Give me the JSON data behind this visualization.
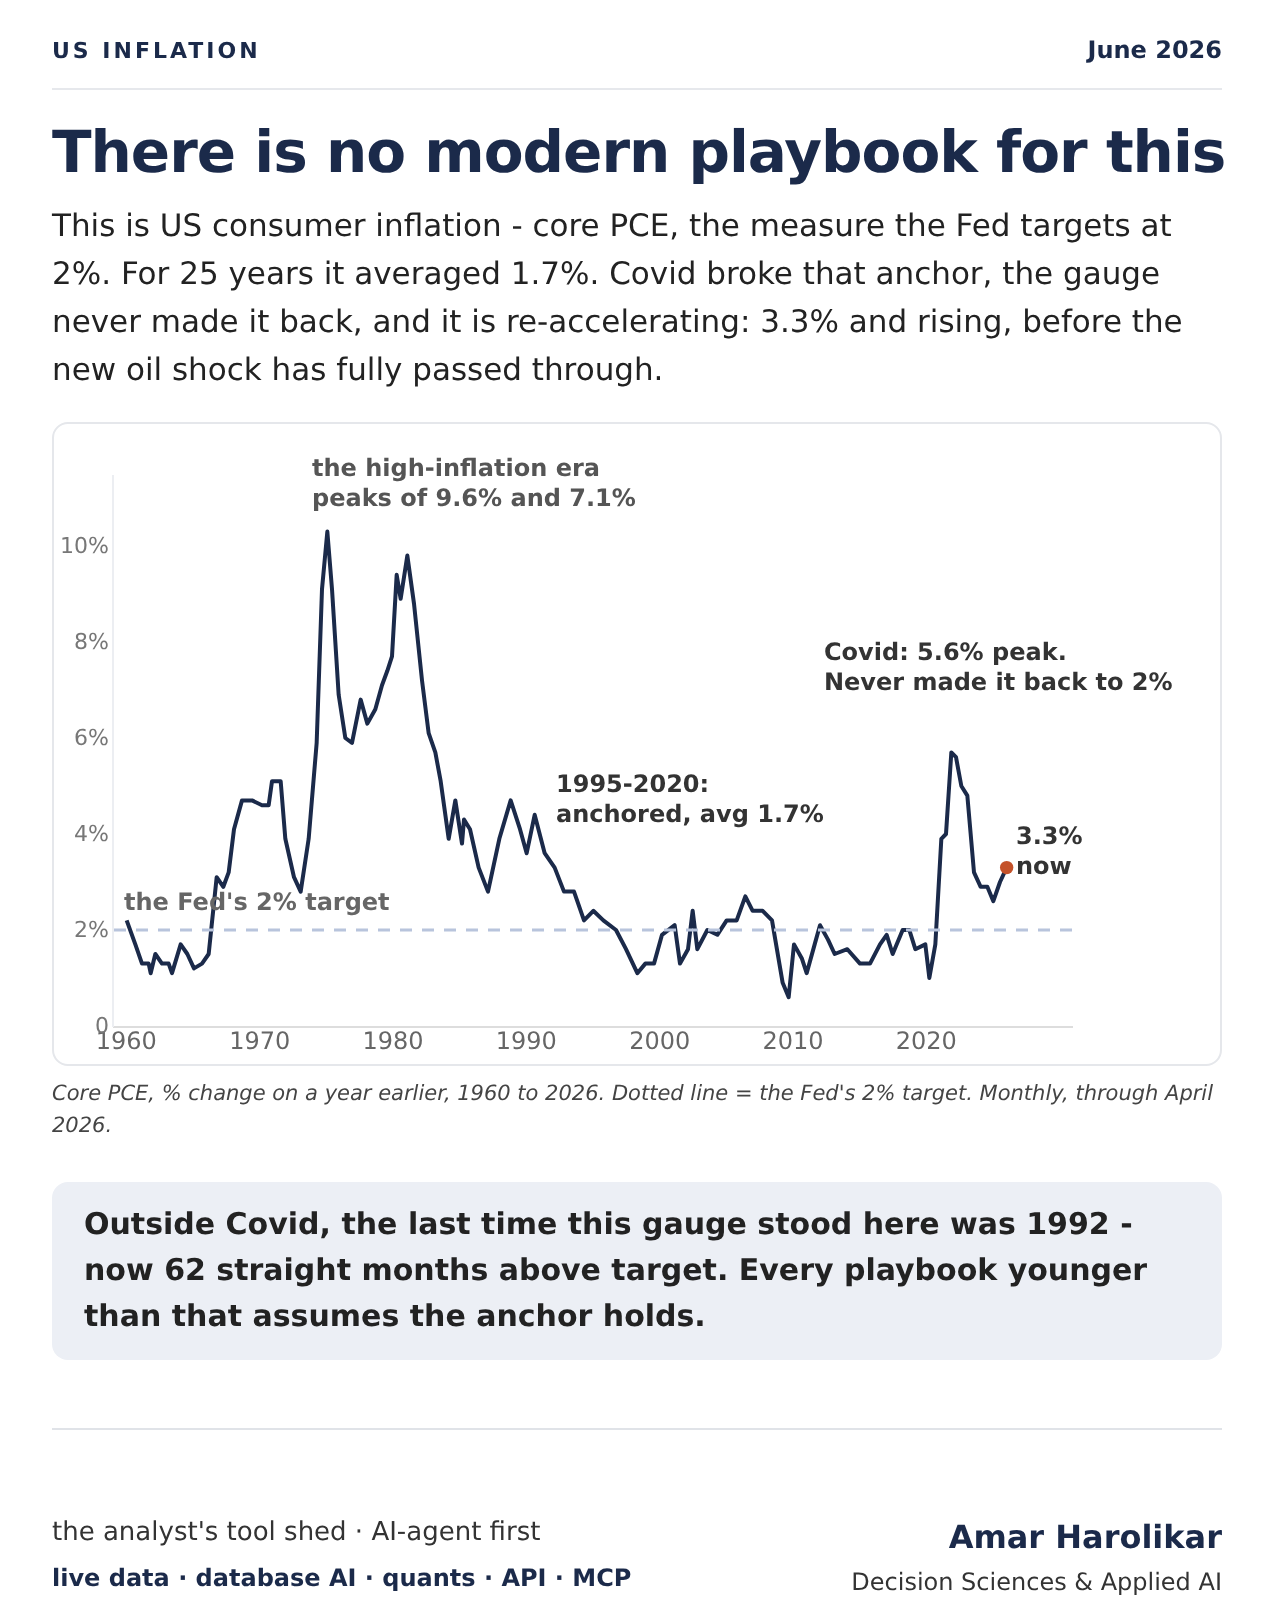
{
  "chart_data": {
    "type": "line",
    "title": "There is no modern playbook for this",
    "subtitle": "This is US consumer inflation - core PCE, the measure the Fed targets at 2%. For 25 years it averaged 1.7%. Covid broke that anchor, the gauge never made it back, and it is re-accelerating: 3.3% and rising, before the new oil shock has fully passed through.",
    "xlim": [
      1959,
      2031
    ],
    "xticks": [
      1960,
      1970,
      1980,
      1990,
      2000,
      2010,
      2020
    ],
    "ylim": [
      0,
      11.5
    ],
    "yticks": [
      0,
      {
        "value": 2,
        "label": "2%"
      },
      {
        "value": 4,
        "label": "4%"
      },
      {
        "value": 6,
        "label": "6%"
      },
      {
        "value": 8,
        "label": "8%"
      },
      {
        "value": 10,
        "label": "10%"
      }
    ],
    "series": [
      {
        "color": "#1b2a4a",
        "x": [
          1960.1,
          1960.75,
          1961.25,
          1961.75,
          1961.9,
          1962.25,
          1962.75,
          1963.25,
          1963.5,
          1964.15,
          1964.65,
          1965.15,
          1965.75,
          1966.25,
          1966.85,
          1967.35,
          1967.75,
          1968.15,
          1968.75,
          1969.5,
          1970.25,
          1970.75,
          1971,
          1971.65,
          1972,
          1972.65,
          1973.15,
          1973.75,
          1974.35,
          1974.75,
          1975.15,
          1975.5,
          1976,
          1976.5,
          1977,
          1977.65,
          1978.15,
          1978.75,
          1979.25,
          1979.65,
          1980,
          1980.35,
          1980.65,
          1981.15,
          1981.65,
          1982.25,
          1982.75,
          1983.25,
          1983.65,
          1984.25,
          1984.75,
          1985.25,
          1985.4,
          1985.85,
          1986.5,
          1987.2,
          1988.05,
          1988.9,
          1989.6,
          1990.1,
          1990.7,
          1991.45,
          1992.2,
          1992.9,
          1993.65,
          1994.4,
          1995.1,
          1995.85,
          1996.8,
          1997.55,
          1998.4,
          1999,
          1999.65,
          2000.25,
          2001.2,
          2001.6,
          2002.2,
          2002.55,
          2002.9,
          2003.65,
          2004.4,
          2005.1,
          2005.85,
          2006.5,
          2007.05,
          2007.8,
          2008.5,
          2009.3,
          2009.75,
          2010.15,
          2010.75,
          2011.1,
          2011.7,
          2012.1,
          2012.7,
          2013.2,
          2014.15,
          2015.1,
          2015.85,
          2016.6,
          2017.1,
          2017.55,
          2018.3,
          2018.8,
          2019.25,
          2020,
          2020.3,
          2020.75,
          2021.2,
          2021.55,
          2021.95,
          2022.3,
          2022.7,
          2023.15,
          2023.65,
          2024.15,
          2024.65,
          2025.1,
          2025.6,
          2026.1
        ],
        "values": [
          2.2,
          1.7,
          1.3,
          1.3,
          1.1,
          1.5,
          1.3,
          1.3,
          1.1,
          1.7,
          1.5,
          1.2,
          1.3,
          1.5,
          3.1,
          2.9,
          3.2,
          4.1,
          4.7,
          4.7,
          4.6,
          4.6,
          5.1,
          5.1,
          3.9,
          3.1,
          2.8,
          3.9,
          5.9,
          9.1,
          10.3,
          9.1,
          6.9,
          6.0,
          5.9,
          6.8,
          6.3,
          6.6,
          7.1,
          7.4,
          7.7,
          9.4,
          8.9,
          9.8,
          8.8,
          7.2,
          6.1,
          5.7,
          5.1,
          3.9,
          4.7,
          3.8,
          4.3,
          4.1,
          3.3,
          2.8,
          3.9,
          4.7,
          4.1,
          3.6,
          4.4,
          3.6,
          3.3,
          2.8,
          2.8,
          2.2,
          2.4,
          2.2,
          2.0,
          1.6,
          1.1,
          1.3,
          1.3,
          1.9,
          2.1,
          1.3,
          1.6,
          2.4,
          1.6,
          2.0,
          1.9,
          2.2,
          2.2,
          2.7,
          2.4,
          2.4,
          2.2,
          0.9,
          0.6,
          1.7,
          1.4,
          1.1,
          1.7,
          2.1,
          1.8,
          1.5,
          1.6,
          1.3,
          1.3,
          1.7,
          1.9,
          1.5,
          2.0,
          2.0,
          1.6,
          1.7,
          1.0,
          1.7,
          3.9,
          4.0,
          5.7,
          5.6,
          5.0,
          4.8,
          3.2,
          2.9,
          2.9,
          2.6,
          3.0,
          3.3
        ]
      },
      {
        "type": "scatter",
        "color": "#c4522a",
        "x": [
          2026.1
        ],
        "values": [
          3.3
        ]
      }
    ],
    "ref_lines": [
      {
        "axis": "y",
        "value": 2,
        "label": "the Fed's 2% target",
        "color": "#b8c4dc",
        "line_style": "dashed"
      }
    ],
    "annotations": [
      "US INFLATION",
      "June 2026",
      "the high-inflation era\npeaks of 9.6% and 7.1%",
      "1995-2020:\nanchored, avg 1.7%",
      "Covid: 5.6% peak.\nNever made it back to 2%",
      "3.3%\nnow",
      "Core PCE, % change on a year earlier, 1960 to 2026. Dotted line = the Fed's 2% target. Monthly, through April 2026.",
      "Outside Covid, the last time this gauge stood here was 1992 - now 62 straight months above target. Every playbook younger than that assumes the anchor holds.",
      "the analyst's tool shed · AI-agent first",
      "live data · database AI · quants · API · MCP",
      "Amar Harolikar",
      "Decision Sciences & Applied AI"
    ]
  }
}
